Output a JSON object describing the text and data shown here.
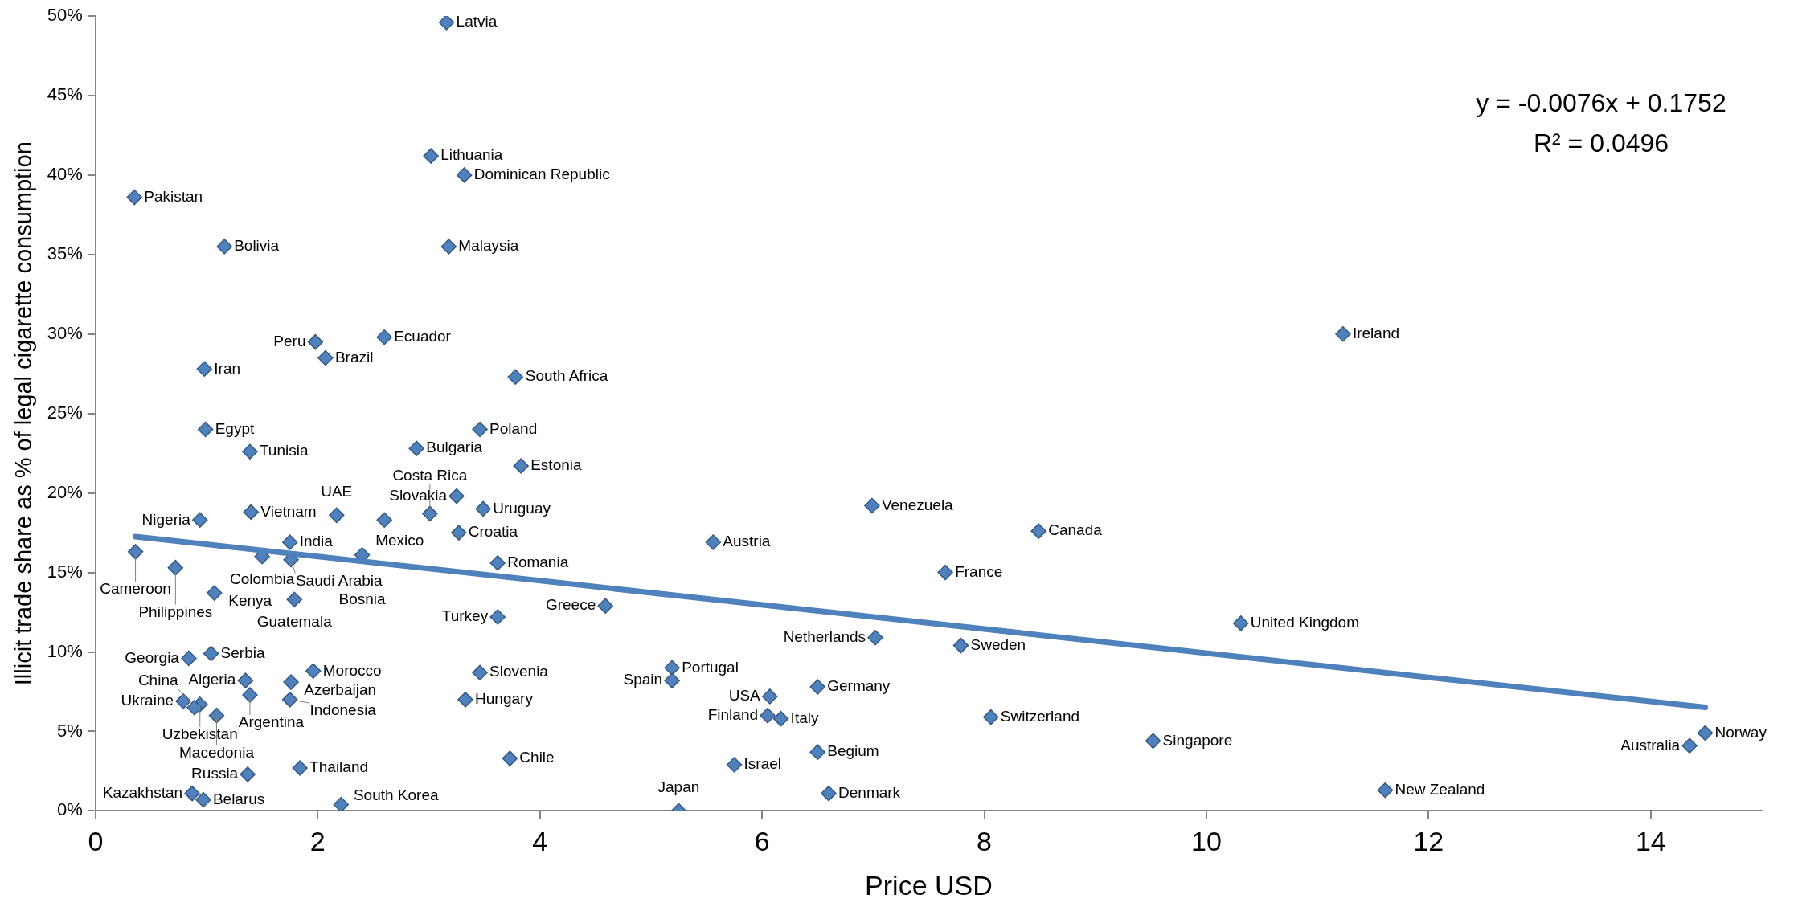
{
  "chart_data": {
    "type": "scatter",
    "xlabel": "Price USD",
    "ylabel": "Illicit trade share as % of legal cigarette consumption",
    "marker": "diamond",
    "grid": false,
    "xlim": [
      0,
      15
    ],
    "xticks": [
      0,
      2,
      4,
      6,
      8,
      10,
      12,
      14
    ],
    "ylim": [
      0,
      0.5
    ],
    "yticks": [
      {
        "value": 0,
        "label": "0%"
      },
      {
        "value": 0.05,
        "label": "5%"
      },
      {
        "value": 0.1,
        "label": "10%"
      },
      {
        "value": 0.15,
        "label": "15%"
      },
      {
        "value": 0.2,
        "label": "20%"
      },
      {
        "value": 0.25,
        "label": "25%"
      },
      {
        "value": 0.3,
        "label": "30%"
      },
      {
        "value": 0.35,
        "label": "35%"
      },
      {
        "value": 0.4,
        "label": "40%"
      },
      {
        "value": 0.45,
        "label": "45%"
      },
      {
        "value": 0.5,
        "label": "50%"
      }
    ],
    "series": [
      {
        "color": "#4f81bd",
        "x": [
          3.16,
          3.02,
          3.32,
          0.35,
          1.16,
          3.18,
          1.98,
          2.07,
          2.6,
          0.98,
          3.78,
          11.23,
          0.99,
          3.46,
          2.89,
          1.39,
          3.83,
          3.25,
          3.49,
          1.4,
          0.94,
          2.17,
          2.6,
          3.01,
          3.27,
          6.99,
          8.49,
          5.56,
          1.75,
          0.36,
          1.5,
          1.76,
          2.4,
          3.62,
          0.72,
          7.65,
          1.07,
          1.79,
          4.59,
          3.62,
          10.31,
          7.02,
          7.79,
          1.04,
          0.84,
          5.19,
          1.96,
          3.46,
          1.35,
          5.19,
          1.76,
          6.5,
          1.39,
          6.07,
          1.75,
          3.33,
          0.79,
          0.94,
          0.89,
          1.09,
          6.05,
          8.06,
          6.17,
          14.49,
          9.52,
          14.35,
          6.5,
          3.73,
          5.75,
          1.84,
          1.37,
          11.61,
          0.87,
          6.6,
          0.97,
          2.21,
          5.25
        ],
        "values": [
          0.496,
          0.412,
          0.4,
          0.386,
          0.355,
          0.355,
          0.295,
          0.285,
          0.298,
          0.278,
          0.273,
          0.3,
          0.24,
          0.24,
          0.228,
          0.226,
          0.217,
          0.198,
          0.19,
          0.188,
          0.183,
          0.186,
          0.183,
          0.187,
          0.175,
          0.192,
          0.176,
          0.169,
          0.169,
          0.163,
          0.16,
          0.158,
          0.161,
          0.156,
          0.153,
          0.15,
          0.137,
          0.133,
          0.129,
          0.122,
          0.118,
          0.109,
          0.104,
          0.099,
          0.096,
          0.09,
          0.088,
          0.087,
          0.082,
          0.082,
          0.081,
          0.078,
          0.073,
          0.072,
          0.07,
          0.07,
          0.069,
          0.067,
          0.065,
          0.06,
          0.06,
          0.059,
          0.058,
          0.049,
          0.044,
          0.041,
          0.037,
          0.033,
          0.029,
          0.027,
          0.023,
          0.013,
          0.011,
          0.011,
          0.007,
          0.004,
          0
        ]
      },
      {
        "type": "line",
        "color": "#4f81bd",
        "marker": "none",
        "x": [
          0.36,
          14.49
        ],
        "values": [
          0.1725,
          0.0651
        ]
      }
    ],
    "annotations": [
      {
        "text": "Latvia",
        "x": 3.16,
        "y": 0.496
      },
      {
        "text": "Lithuania",
        "x": 3.02,
        "y": 0.412
      },
      {
        "text": "Dominican Republic",
        "x": 3.32,
        "y": 0.4
      },
      {
        "text": "Pakistan",
        "x": 0.35,
        "y": 0.386
      },
      {
        "text": "Bolivia",
        "x": 1.16,
        "y": 0.355
      },
      {
        "text": "Malaysia",
        "x": 3.18,
        "y": 0.355
      },
      {
        "text": "Peru",
        "x": 1.98,
        "y": 0.295
      },
      {
        "text": "Brazil",
        "x": 2.07,
        "y": 0.285
      },
      {
        "text": "Ecuador",
        "x": 2.6,
        "y": 0.298
      },
      {
        "text": "Iran",
        "x": 0.98,
        "y": 0.278
      },
      {
        "text": "South Africa",
        "x": 3.78,
        "y": 0.273
      },
      {
        "text": "Ireland",
        "x": 11.23,
        "y": 0.3
      },
      {
        "text": "Egypt",
        "x": 0.99,
        "y": 0.24
      },
      {
        "text": "Poland",
        "x": 3.46,
        "y": 0.24
      },
      {
        "text": "Bulgaria",
        "x": 2.89,
        "y": 0.228
      },
      {
        "text": "Tunisia",
        "x": 1.39,
        "y": 0.226
      },
      {
        "text": "Estonia",
        "x": 3.83,
        "y": 0.217
      },
      {
        "text": "Slovakia",
        "x": 3.25,
        "y": 0.198
      },
      {
        "text": "Uruguay",
        "x": 3.49,
        "y": 0.19
      },
      {
        "text": "Vietnam",
        "x": 1.4,
        "y": 0.188
      },
      {
        "text": "Nigeria",
        "x": 0.94,
        "y": 0.183
      },
      {
        "text": "UAE",
        "x": 2.17,
        "y": 0.186
      },
      {
        "text": "Mexico",
        "x": 2.6,
        "y": 0.183
      },
      {
        "text": "Costa Rica",
        "x": 3.01,
        "y": 0.187
      },
      {
        "text": "Croatia",
        "x": 3.27,
        "y": 0.175
      },
      {
        "text": "Venezuela",
        "x": 6.99,
        "y": 0.192
      },
      {
        "text": "Canada",
        "x": 8.49,
        "y": 0.176
      },
      {
        "text": "Austria",
        "x": 5.56,
        "y": 0.169
      },
      {
        "text": "India",
        "x": 1.75,
        "y": 0.169
      },
      {
        "text": "Cameroon",
        "x": 0.36,
        "y": 0.163
      },
      {
        "text": "Colombia",
        "x": 1.5,
        "y": 0.16
      },
      {
        "text": "Saudi Arabia",
        "x": 1.76,
        "y": 0.158
      },
      {
        "text": "Bosnia",
        "x": 2.4,
        "y": 0.161
      },
      {
        "text": "Romania",
        "x": 3.62,
        "y": 0.156
      },
      {
        "text": "Philippines",
        "x": 0.72,
        "y": 0.153
      },
      {
        "text": "France",
        "x": 7.65,
        "y": 0.15
      },
      {
        "text": "Kenya",
        "x": 1.07,
        "y": 0.137
      },
      {
        "text": "Guatemala",
        "x": 1.79,
        "y": 0.133
      },
      {
        "text": "Greece",
        "x": 4.59,
        "y": 0.129
      },
      {
        "text": "Turkey",
        "x": 3.62,
        "y": 0.122
      },
      {
        "text": "United Kingdom",
        "x": 10.31,
        "y": 0.118
      },
      {
        "text": "Netherlands",
        "x": 7.02,
        "y": 0.109
      },
      {
        "text": "Sweden",
        "x": 7.79,
        "y": 0.104
      },
      {
        "text": "Serbia",
        "x": 1.04,
        "y": 0.099
      },
      {
        "text": "Georgia",
        "x": 0.84,
        "y": 0.096
      },
      {
        "text": "Portugal",
        "x": 5.19,
        "y": 0.09
      },
      {
        "text": "Morocco",
        "x": 1.96,
        "y": 0.088
      },
      {
        "text": "Slovenia",
        "x": 3.46,
        "y": 0.087
      },
      {
        "text": "Algeria",
        "x": 1.35,
        "y": 0.082
      },
      {
        "text": "Spain",
        "x": 5.19,
        "y": 0.082
      },
      {
        "text": "Azerbaijan",
        "x": 1.76,
        "y": 0.081
      },
      {
        "text": "Germany",
        "x": 6.5,
        "y": 0.078
      },
      {
        "text": "Argentina",
        "x": 1.39,
        "y": 0.073
      },
      {
        "text": "USA",
        "x": 6.07,
        "y": 0.072
      },
      {
        "text": "Indonesia",
        "x": 1.75,
        "y": 0.07
      },
      {
        "text": "Hungary",
        "x": 3.33,
        "y": 0.07
      },
      {
        "text": "Ukraine",
        "x": 0.79,
        "y": 0.069
      },
      {
        "text": "Uzbekistan",
        "x": 0.94,
        "y": 0.067
      },
      {
        "text": "China",
        "x": 0.89,
        "y": 0.065
      },
      {
        "text": "Macedonia",
        "x": 1.09,
        "y": 0.06
      },
      {
        "text": "Finland",
        "x": 6.05,
        "y": 0.06
      },
      {
        "text": "Switzerland",
        "x": 8.06,
        "y": 0.059
      },
      {
        "text": "Italy",
        "x": 6.17,
        "y": 0.058
      },
      {
        "text": "Norway",
        "x": 14.49,
        "y": 0.049
      },
      {
        "text": "Singapore",
        "x": 9.52,
        "y": 0.044
      },
      {
        "text": "Australia",
        "x": 14.35,
        "y": 0.041
      },
      {
        "text": "Begium",
        "x": 6.5,
        "y": 0.037
      },
      {
        "text": "Chile",
        "x": 3.73,
        "y": 0.033
      },
      {
        "text": "Israel",
        "x": 5.75,
        "y": 0.029
      },
      {
        "text": "Thailand",
        "x": 1.84,
        "y": 0.027
      },
      {
        "text": "Russia",
        "x": 1.37,
        "y": 0.023
      },
      {
        "text": "New Zealand",
        "x": 11.61,
        "y": 0.013
      },
      {
        "text": "Kazakhstan",
        "x": 0.87,
        "y": 0.011
      },
      {
        "text": "Denmark",
        "x": 6.6,
        "y": 0.011
      },
      {
        "text": "Belarus",
        "x": 0.97,
        "y": 0.007
      },
      {
        "text": "South Korea",
        "x": 2.21,
        "y": 0.004
      },
      {
        "text": "Japan",
        "x": 5.25,
        "y": 0
      },
      "y = -0.0076x + 0.1752",
      "R² = 0.0496"
    ]
  }
}
